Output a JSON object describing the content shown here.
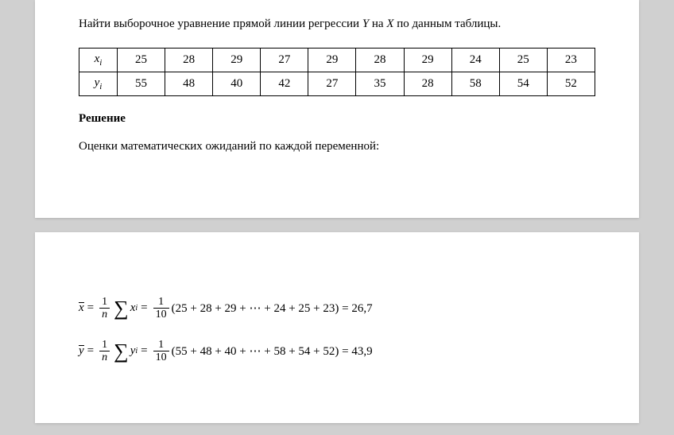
{
  "problem": {
    "text_part1": "Найти выборочное уравнение прямой линии регрессии ",
    "var_y": "Y",
    "text_part2": " на ",
    "var_x": "X",
    "text_part3": " по данным таблицы."
  },
  "table": {
    "row_labels": {
      "x": "x",
      "y": "y",
      "subscript": "i"
    },
    "data": {
      "x": [
        "25",
        "28",
        "29",
        "27",
        "29",
        "28",
        "29",
        "24",
        "25",
        "23"
      ],
      "y": [
        "55",
        "48",
        "40",
        "42",
        "27",
        "35",
        "28",
        "58",
        "54",
        "52"
      ]
    }
  },
  "solution": {
    "header": "Решение",
    "intro": "Оценки математических ожиданий по каждой переменной:"
  },
  "formulas": {
    "x_mean": {
      "lhs_var": "x",
      "frac1_num": "1",
      "frac1_den": "n",
      "sum_var": "x",
      "sum_sub": "i",
      "frac2_num": "1",
      "frac2_den": "10",
      "expansion": "(25 + 28 + 29 + ⋯ + 24 + 25 + 23) = 26,7"
    },
    "y_mean": {
      "lhs_var": "y",
      "frac1_num": "1",
      "frac1_den": "n",
      "sum_var": "y",
      "sum_sub": "i",
      "frac2_num": "1",
      "frac2_den": "10",
      "expansion": "(55 + 48 + 40 + ⋯ + 58 + 54 + 52) = 43,9"
    }
  },
  "styling": {
    "page_bg": "#ffffff",
    "body_bg": "#d0d0d0",
    "text_color": "#000000",
    "border_color": "#000000",
    "font_family": "Times New Roman",
    "body_fontsize": 15,
    "table_cell_padding": 6
  }
}
